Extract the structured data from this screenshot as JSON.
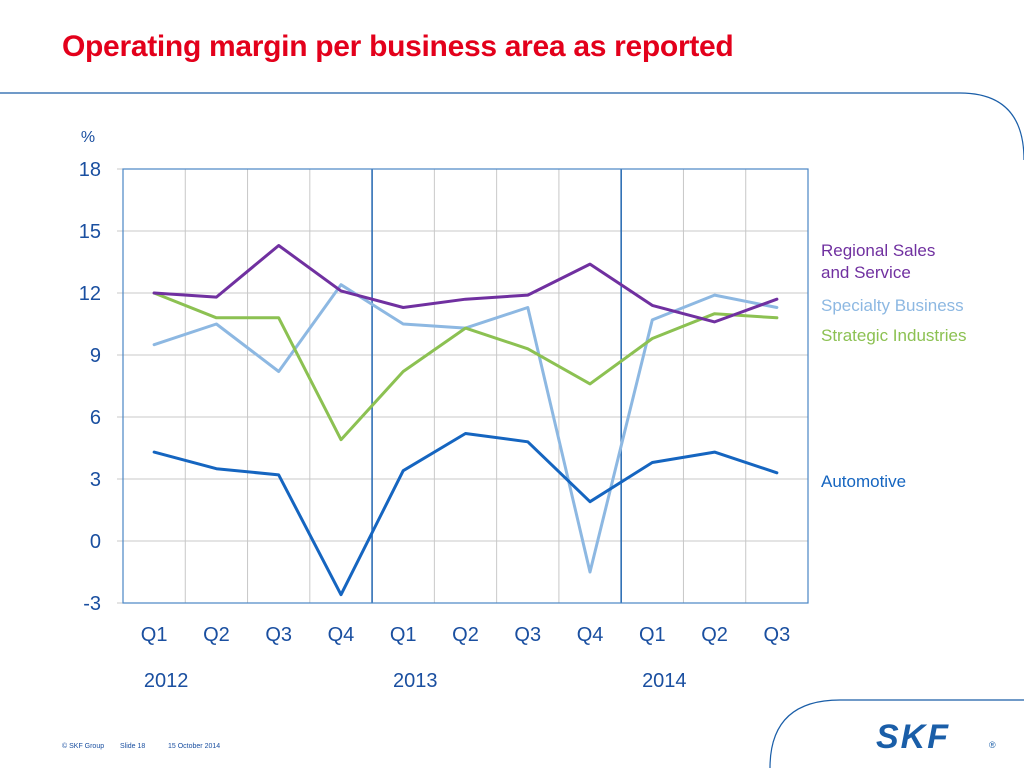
{
  "slide": {
    "title": "Operating margin per business area as reported",
    "footer": {
      "copyright": "© SKF Group",
      "slide": "Slide 18",
      "date": "15 October 2014"
    },
    "logo_text": "SKF"
  },
  "colors": {
    "title": "#e3001b",
    "deco_line": "#1a5ea8",
    "grid": "#c8c8c8",
    "axis_frame": "#4a86c5",
    "year_divider": "#2f6fb5"
  },
  "chart_data": {
    "type": "line",
    "ylabel": "%",
    "ylim": [
      -3,
      18
    ],
    "yticks": [
      18,
      15,
      12,
      9,
      6,
      3,
      0,
      -3
    ],
    "categories": [
      "Q1",
      "Q2",
      "Q3",
      "Q4",
      "Q1",
      "Q2",
      "Q3",
      "Q4",
      "Q1",
      "Q2",
      "Q3"
    ],
    "years": [
      {
        "label": "2012",
        "start_index": 0
      },
      {
        "label": "2013",
        "start_index": 4
      },
      {
        "label": "2014",
        "start_index": 8
      }
    ],
    "grid": true,
    "legend": "right",
    "series": [
      {
        "name": "Regional Sales and Service",
        "legend_lines": [
          "Regional Sales",
          "and Service"
        ],
        "color": "#7030a0",
        "values": [
          12.0,
          11.8,
          14.3,
          12.1,
          11.3,
          11.7,
          11.9,
          13.4,
          11.4,
          10.6,
          11.7
        ]
      },
      {
        "name": "Specialty Business",
        "legend_lines": [
          "Specialty Business"
        ],
        "color": "#8db8e2",
        "values": [
          9.5,
          10.5,
          8.2,
          12.4,
          10.5,
          10.3,
          11.3,
          -1.5,
          10.7,
          11.9,
          11.3
        ]
      },
      {
        "name": "Strategic Industries",
        "legend_lines": [
          "Strategic Industries"
        ],
        "color": "#8cc152",
        "values": [
          12.0,
          10.8,
          10.8,
          4.9,
          8.2,
          10.3,
          9.3,
          7.6,
          9.8,
          11.0,
          10.8
        ]
      },
      {
        "name": "Automotive",
        "legend_lines": [
          "Automotive"
        ],
        "color": "#1565c0",
        "values": [
          4.3,
          3.5,
          3.2,
          -2.6,
          3.4,
          5.2,
          4.8,
          1.9,
          3.8,
          4.3,
          3.3
        ]
      }
    ]
  }
}
